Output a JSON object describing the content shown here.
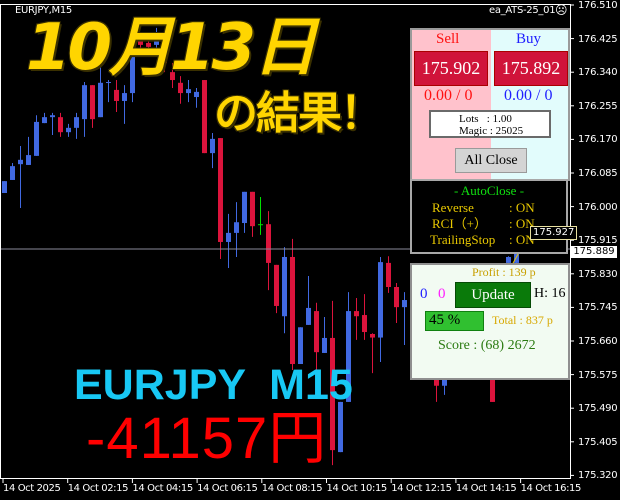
{
  "header": {
    "symbol": "EURJPY,M15",
    "expert_name": "ea_ATS-25_01",
    "expert_status_icon": "frown-face-icon"
  },
  "overlay": {
    "date_title": "10月13日",
    "subtitle": "の結果！",
    "pair_timeframe": "EURJPY  M15",
    "result": "-41157円"
  },
  "trade_panel": {
    "sell_label": "Sell",
    "buy_label": "Buy",
    "sell_price": "175.902",
    "buy_price": "175.892",
    "sell_position": "0.00 / 0",
    "buy_position": "0.00 / 0",
    "lots": "Lots   : 1.00",
    "magic": "Magic : 25025",
    "all_close_label": "All Close"
  },
  "auto_close": {
    "title": "- AutoClose -",
    "rows": [
      {
        "label": "Reverse",
        "value": ": ON"
      },
      {
        "label": "RCI（+）",
        "value": ": ON"
      },
      {
        "label": "TrailingStop",
        "value": ": ON"
      }
    ]
  },
  "status_panel": {
    "count_blue": "0",
    "count_magenta": "0",
    "update_label": "Update",
    "hour": "H: 16",
    "profit": "Profit : 139 p",
    "total": "Total : 837 p",
    "progress_percent": 45,
    "progress_label": "45 %",
    "score": "Score : (68) 2672"
  },
  "price_axis": {
    "ticks": [
      "176.510",
      "176.425",
      "176.340",
      "176.255",
      "176.170",
      "176.085",
      "176.000",
      "175.915",
      "175.830",
      "175.745",
      "175.660",
      "175.575",
      "175.490",
      "175.405",
      "175.320"
    ],
    "current_price": "175.889",
    "trailing_stop_price": "175.927"
  },
  "time_axis": {
    "ticks": [
      "14 Oct 2025",
      "14 Oct 02:15",
      "14 Oct 04:15",
      "14 Oct 06:15",
      "14 Oct 08:15",
      "14 Oct 10:15",
      "14 Oct 12:15",
      "14 Oct 14:15",
      "14 Oct 16:15"
    ]
  },
  "colors": {
    "bull": "#4169E1",
    "bear": "#DC143C",
    "doji": "#00E000",
    "background": "#000000",
    "trail": "#E8C800"
  },
  "chart_data": {
    "type": "candlestick",
    "ylim": [
      175.32,
      176.51
    ],
    "candles": [
      [
        176.034,
        176.064,
        176.034,
        176.064
      ],
      [
        176.067,
        176.11,
        176.067,
        176.102
      ],
      [
        176.107,
        176.153,
        175.996,
        176.118
      ],
      [
        176.105,
        176.176,
        176.105,
        176.13
      ],
      [
        176.128,
        176.231,
        176.128,
        176.214
      ],
      [
        176.211,
        176.237,
        176.211,
        176.226
      ],
      [
        176.226,
        176.237,
        176.181,
        176.231
      ],
      [
        176.226,
        176.237,
        176.176,
        176.188
      ],
      [
        176.188,
        176.209,
        176.176,
        176.199
      ],
      [
        176.199,
        176.237,
        176.171,
        176.226
      ],
      [
        176.221,
        176.315,
        176.176,
        176.307
      ],
      [
        176.307,
        176.307,
        176.199,
        176.221
      ],
      [
        176.226,
        176.378,
        176.226,
        176.313
      ],
      [
        176.313,
        176.32,
        176.264,
        176.315
      ],
      [
        176.295,
        176.32,
        176.239,
        176.267
      ],
      [
        176.267,
        176.307,
        176.209,
        176.287
      ],
      [
        176.287,
        176.452,
        176.264,
        176.421
      ],
      [
        176.426,
        176.434,
        176.4,
        176.409
      ],
      [
        176.414,
        176.421,
        176.39,
        176.404
      ],
      [
        176.409,
        176.452,
        176.401,
        176.426
      ],
      [
        176.426,
        176.434,
        176.34,
        176.363
      ],
      [
        176.34,
        176.363,
        176.3,
        176.32
      ],
      [
        176.313,
        176.33,
        176.26,
        176.287
      ],
      [
        176.287,
        176.32,
        176.264,
        176.297
      ],
      [
        176.277,
        176.3,
        176.25,
        176.29
      ],
      [
        176.32,
        176.32,
        176.135,
        176.135
      ],
      [
        176.135,
        176.186,
        176.097,
        176.171
      ],
      [
        176.173,
        176.173,
        175.867,
        175.91
      ],
      [
        175.91,
        175.981,
        175.844,
        175.933
      ],
      [
        175.933,
        176.011,
        175.872,
        175.96
      ],
      [
        175.958,
        176.037,
        175.933,
        176.037
      ],
      [
        176.037,
        176.037,
        175.923,
        175.95
      ],
      [
        175.955,
        176.024,
        175.928,
        175.955
      ],
      [
        175.955,
        175.988,
        175.788,
        175.857
      ],
      [
        175.852,
        175.852,
        175.73,
        175.748
      ],
      [
        175.722,
        175.897,
        175.679,
        175.872
      ],
      [
        175.872,
        175.918,
        175.586,
        175.601
      ],
      [
        175.601,
        175.694,
        175.601,
        175.694
      ],
      [
        175.7,
        175.824,
        175.7,
        175.743
      ],
      [
        175.735,
        175.756,
        175.586,
        175.631
      ],
      [
        175.629,
        175.72,
        175.629,
        175.667
      ],
      [
        175.667,
        175.761,
        175.345,
        175.383
      ],
      [
        175.378,
        175.505,
        175.378,
        175.505
      ],
      [
        175.505,
        175.783,
        175.505,
        175.735
      ],
      [
        175.735,
        175.768,
        175.662,
        175.722
      ],
      [
        175.725,
        175.778,
        175.662,
        175.682
      ],
      [
        175.677,
        175.679,
        175.578,
        175.668
      ],
      [
        175.668,
        175.872,
        175.606,
        175.859
      ],
      [
        175.857,
        175.874,
        175.781,
        175.796
      ],
      [
        175.796,
        175.806,
        175.705,
        175.745
      ],
      [
        175.745,
        175.783,
        175.649,
        175.763
      ]
    ],
    "hidden_candles": [
      {
        "index": 54,
        "ohlc": [
          175.566,
          175.566,
          175.505,
          175.546
        ]
      },
      {
        "index": 55,
        "ohlc": [
          175.546,
          175.566,
          175.523,
          175.566
        ]
      },
      {
        "index": 61,
        "ohlc": [
          175.566,
          175.566,
          175.505,
          175.505
        ]
      },
      {
        "index": 63,
        "ohlc": [
          175.857,
          175.874,
          175.857,
          175.872
        ]
      },
      {
        "index": 64,
        "ohlc": [
          175.857,
          175.882,
          175.85,
          175.882
        ]
      }
    ]
  }
}
